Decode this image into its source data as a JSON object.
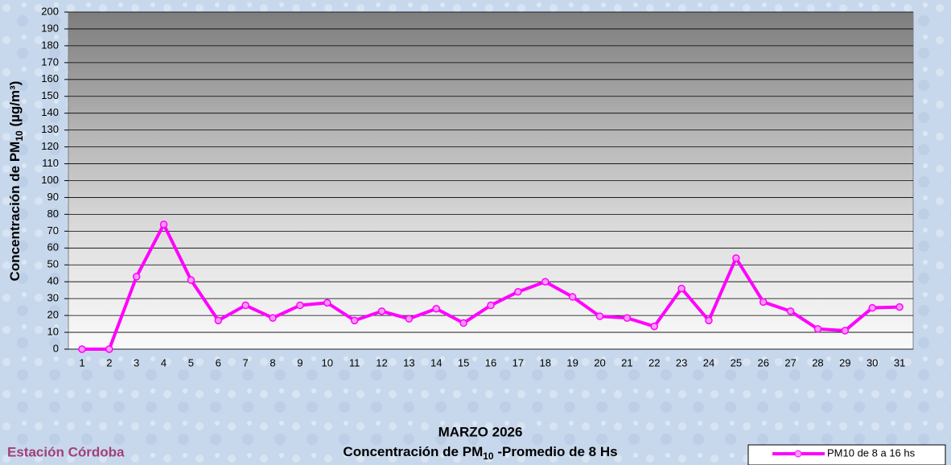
{
  "chart_data": {
    "type": "line",
    "title": [
      "MARZO 2026",
      "Concentración de PM",
      "10",
      " -Promedio de 8 Hs"
    ],
    "station": "Estación Córdoba",
    "ylabel": [
      "Concentración de PM",
      "10",
      " (µg/m³)"
    ],
    "categories": [
      "1",
      "2",
      "3",
      "4",
      "5",
      "6",
      "7",
      "8",
      "9",
      "10",
      "11",
      "12",
      "13",
      "14",
      "15",
      "16",
      "17",
      "18",
      "19",
      "20",
      "21",
      "22",
      "23",
      "24",
      "25",
      "26",
      "27",
      "28",
      "29",
      "30",
      "31"
    ],
    "series": [
      {
        "name": "PM10 de 8 a 16 hs",
        "color": "#ff00ff",
        "values": [
          0,
          0,
          43,
          74,
          41,
          17,
          26,
          18.5,
          26,
          27.5,
          17,
          22.5,
          18,
          24,
          15.5,
          26,
          34,
          40,
          31,
          19.5,
          18.5,
          13.5,
          36,
          17,
          54,
          28,
          22.5,
          12,
          11,
          24.5,
          25
        ]
      }
    ],
    "ylim": [
      0,
      200
    ],
    "yticks": [
      0,
      10,
      20,
      30,
      40,
      50,
      60,
      70,
      80,
      90,
      100,
      110,
      120,
      130,
      140,
      150,
      160,
      170,
      180,
      190,
      200
    ],
    "grid": true,
    "legend": "bottom-right"
  }
}
